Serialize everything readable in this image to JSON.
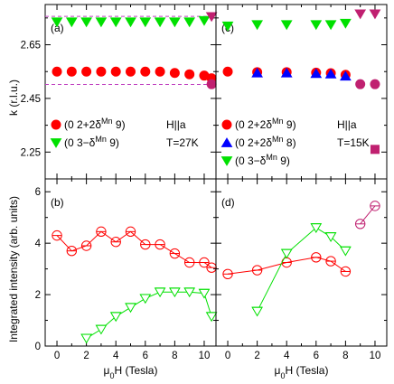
{
  "chart_data": [
    {
      "panel": "(a)",
      "type": "scatter",
      "ylabel": "k (r.l.u.)",
      "xlim": [
        -0.8,
        10.8
      ],
      "ylim": [
        2.15,
        2.8
      ],
      "yticks": [
        2.25,
        2.45,
        2.65
      ],
      "annotations": [
        "H||a",
        "T=27K"
      ],
      "reference_lines": [
        {
          "y": 2.756,
          "color": "#c040c0",
          "style": "dashed"
        },
        {
          "y": 2.502,
          "color": "#c040c0",
          "style": "dashed"
        }
      ],
      "series": [
        {
          "name": "(0 2+δ^Mn 9)",
          "name_main": "(0 2+2δ",
          "name_sup": "Mn",
          "name_end": " 9)",
          "name_color": "#ff0000",
          "marker": "circle",
          "color": "#ff0000",
          "x": [
            0,
            1,
            2,
            3,
            4,
            5,
            6,
            7,
            8,
            9,
            10,
            10.5
          ],
          "y": [
            2.55,
            2.55,
            2.55,
            2.55,
            2.55,
            2.55,
            2.55,
            2.55,
            2.545,
            2.54,
            2.535,
            2.525
          ]
        },
        {
          "name": "(0 3−δ^Mn 9)",
          "name_main": "(0 3−δ",
          "name_sup": "Mn",
          "name_end": " 9)",
          "name_color": "#00c000",
          "marker": "triangle-down",
          "color": "#00e000",
          "x": [
            0,
            1,
            2,
            3,
            4,
            5,
            6,
            7,
            8,
            9,
            10
          ],
          "y": [
            2.735,
            2.735,
            2.735,
            2.735,
            2.735,
            2.735,
            2.735,
            2.735,
            2.735,
            2.735,
            2.74
          ]
        },
        {
          "name": "",
          "marker": "triangle-down",
          "color": "#c02070",
          "x": [
            10.5
          ],
          "y": [
            2.755
          ]
        },
        {
          "name": "",
          "marker": "circle",
          "color": "#c02070",
          "x": [
            10.5
          ],
          "y": [
            2.503
          ]
        }
      ]
    },
    {
      "panel": "(c)",
      "type": "scatter",
      "xlim": [
        -0.8,
        10.8
      ],
      "ylim": [
        2.15,
        2.8
      ],
      "annotations": [
        "H||a",
        "T=15K"
      ],
      "series": [
        {
          "name": "(0 2+2δ^Mn 9)",
          "name_main": "(0 2+2δ",
          "name_sup": "Mn",
          "name_end": " 9)",
          "name_color": "#ff0000",
          "marker": "circle",
          "color": "#ff0000",
          "x": [
            0,
            2,
            4,
            6,
            7,
            8
          ],
          "y": [
            2.55,
            2.548,
            2.548,
            2.546,
            2.544,
            2.538
          ]
        },
        {
          "name": "(0 2+2δ^Mn 8)",
          "name_main": "(0 2+2δ",
          "name_sup": "Mn",
          "name_end": " 8)",
          "name_color": "#0000ff",
          "marker": "triangle-up",
          "color": "#0000ff",
          "x": [
            2,
            4,
            6,
            7,
            8
          ],
          "y": [
            2.545,
            2.545,
            2.543,
            2.541,
            2.533
          ]
        },
        {
          "name": "(0 3−δ^Mn 9)",
          "name_main": "(0 3−δ",
          "name_sup": "Mn",
          "name_end": " 9)",
          "name_color": "#00c000",
          "marker": "triangle-down",
          "color": "#00e000",
          "x": [
            0,
            2,
            4,
            6,
            7,
            8
          ],
          "y": [
            2.72,
            2.725,
            2.725,
            2.725,
            2.725,
            2.73
          ]
        },
        {
          "name": "",
          "marker": "triangle-down",
          "color": "#c02070",
          "x": [
            9,
            10
          ],
          "y": [
            2.765,
            2.765
          ]
        },
        {
          "name": "",
          "marker": "circle",
          "color": "#c02070",
          "x": [
            9,
            10
          ],
          "y": [
            2.503,
            2.503
          ]
        },
        {
          "name": "",
          "marker": "square",
          "color": "#c02070",
          "x": [
            10
          ],
          "y": [
            2.26
          ]
        }
      ]
    },
    {
      "panel": "(b)",
      "type": "line",
      "xlabel": "μ0H (Tesla)",
      "ylabel": "Integrated intensity (arb. units)",
      "xlim": [
        -0.8,
        10.8
      ],
      "ylim": [
        0,
        6.5
      ],
      "xticks": [
        0,
        2,
        4,
        6,
        8,
        10
      ],
      "yticks": [
        0,
        2,
        4,
        6
      ],
      "series": [
        {
          "name": "",
          "marker": "open-circle",
          "color": "#ff0000",
          "x": [
            0,
            1,
            2,
            3,
            4,
            5,
            6,
            7,
            8,
            9,
            10,
            10.5
          ],
          "y": [
            4.3,
            3.7,
            3.9,
            4.45,
            4.05,
            4.45,
            3.95,
            3.95,
            3.6,
            3.25,
            3.25,
            3.05
          ]
        },
        {
          "name": "",
          "marker": "open-triangle-down",
          "color": "#00e000",
          "x": [
            2,
            3,
            4,
            5,
            6,
            7,
            8,
            9,
            10,
            10.5
          ],
          "y": [
            0.3,
            0.65,
            1.15,
            1.5,
            1.85,
            2.1,
            2.1,
            2.1,
            2.05,
            1.15
          ]
        }
      ]
    },
    {
      "panel": "(d)",
      "type": "line",
      "xlabel": "μ0H (Tesla)",
      "xlim": [
        -0.8,
        10.8
      ],
      "ylim": [
        0,
        6.5
      ],
      "xticks": [
        0,
        2,
        4,
        6,
        8,
        10
      ],
      "series": [
        {
          "name": "",
          "marker": "open-circle",
          "color": "#ff0000",
          "x": [
            0,
            2,
            4,
            6,
            7,
            8
          ],
          "y": [
            2.8,
            2.95,
            3.25,
            3.45,
            3.3,
            2.9
          ]
        },
        {
          "name": "",
          "marker": "open-triangle-down",
          "color": "#00e000",
          "x": [
            2,
            4,
            6,
            7,
            8
          ],
          "y": [
            1.35,
            3.6,
            4.6,
            4.25,
            3.7
          ]
        },
        {
          "name": "",
          "marker": "open-circle",
          "color": "#c02070",
          "x": [
            9,
            10
          ],
          "y": [
            4.75,
            5.45
          ]
        }
      ]
    }
  ]
}
